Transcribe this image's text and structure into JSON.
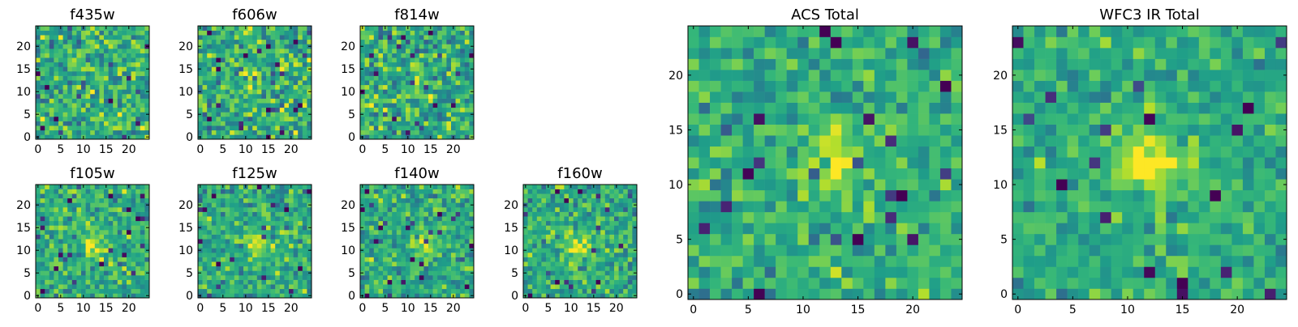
{
  "chart_data": [
    {
      "type": "heatmap",
      "title": "f435w",
      "grid_size": 25,
      "xlim": [
        -0.5,
        24.5
      ],
      "ylim": [
        -0.5,
        24.5
      ],
      "xticks": [
        0,
        5,
        10,
        15,
        20
      ],
      "yticks": [
        0,
        5,
        10,
        15,
        20
      ],
      "colormap": "viridis",
      "source_peak": [
        14,
        15
      ],
      "peak_strength": 0.1,
      "noise": 0.55,
      "seed": 11
    },
    {
      "type": "heatmap",
      "title": "f606w",
      "grid_size": 25,
      "xlim": [
        -0.5,
        24.5
      ],
      "ylim": [
        -0.5,
        24.5
      ],
      "xticks": [
        0,
        5,
        10,
        15,
        20
      ],
      "yticks": [
        0,
        5,
        10,
        15,
        20
      ],
      "colormap": "viridis",
      "source_peak": [
        12,
        12
      ],
      "peak_strength": 0.2,
      "noise": 0.55,
      "seed": 23
    },
    {
      "type": "heatmap",
      "title": "f814w",
      "grid_size": 25,
      "xlim": [
        -0.5,
        24.5
      ],
      "ylim": [
        -0.5,
        24.5
      ],
      "xticks": [
        0,
        5,
        10,
        15,
        20
      ],
      "yticks": [
        0,
        5,
        10,
        15,
        20
      ],
      "colormap": "viridis",
      "source_peak": [
        13,
        12
      ],
      "peak_strength": 0.12,
      "noise": 0.55,
      "seed": 37
    },
    {
      "type": "heatmap",
      "title": "f105w",
      "grid_size": 25,
      "xlim": [
        -0.5,
        24.5
      ],
      "ylim": [
        -0.5,
        24.5
      ],
      "xticks": [
        0,
        5,
        10,
        15,
        20
      ],
      "yticks": [
        0,
        5,
        10,
        15,
        20
      ],
      "colormap": "viridis",
      "source_peak": [
        12,
        11
      ],
      "peak_strength": 0.28,
      "noise": 0.45,
      "seed": 41
    },
    {
      "type": "heatmap",
      "title": "f125w",
      "grid_size": 25,
      "xlim": [
        -0.5,
        24.5
      ],
      "ylim": [
        -0.5,
        24.5
      ],
      "xticks": [
        0,
        5,
        10,
        15,
        20
      ],
      "yticks": [
        0,
        5,
        10,
        15,
        20
      ],
      "colormap": "viridis",
      "source_peak": [
        12,
        11
      ],
      "peak_strength": 0.25,
      "noise": 0.45,
      "seed": 53
    },
    {
      "type": "heatmap",
      "title": "f140w",
      "grid_size": 25,
      "xlim": [
        -0.5,
        24.5
      ],
      "ylim": [
        -0.5,
        24.5
      ],
      "xticks": [
        0,
        5,
        10,
        15,
        20
      ],
      "yticks": [
        0,
        5,
        10,
        15,
        20
      ],
      "colormap": "viridis",
      "source_peak": [
        14,
        11
      ],
      "peak_strength": 0.3,
      "noise": 0.45,
      "seed": 67
    },
    {
      "type": "heatmap",
      "title": "f160w",
      "grid_size": 25,
      "xlim": [
        -0.5,
        24.5
      ],
      "ylim": [
        -0.5,
        24.5
      ],
      "xticks": [
        0,
        5,
        10,
        15,
        20
      ],
      "yticks": [
        0,
        5,
        10,
        15,
        20
      ],
      "colormap": "viridis",
      "source_peak": [
        12,
        11
      ],
      "peak_strength": 0.3,
      "noise": 0.45,
      "seed": 79
    },
    {
      "type": "heatmap",
      "title": "ACS Total",
      "grid_size": 25,
      "xlim": [
        -0.5,
        24.5
      ],
      "ylim": [
        -0.5,
        24.5
      ],
      "xticks": [
        0,
        5,
        10,
        15,
        20
      ],
      "yticks": [
        0,
        5,
        10,
        15,
        20
      ],
      "colormap": "viridis",
      "source_peak": [
        13,
        12
      ],
      "peak_strength": 0.3,
      "noise": 0.4,
      "seed": 97
    },
    {
      "type": "heatmap",
      "title": "WFC3 IR Total",
      "grid_size": 25,
      "xlim": [
        -0.5,
        24.5
      ],
      "ylim": [
        -0.5,
        24.5
      ],
      "xticks": [
        0,
        5,
        10,
        15,
        20
      ],
      "yticks": [
        0,
        5,
        10,
        15,
        20
      ],
      "colormap": "viridis",
      "source_peak": [
        12,
        12
      ],
      "peak_strength": 0.45,
      "noise": 0.35,
      "seed": 113
    }
  ]
}
